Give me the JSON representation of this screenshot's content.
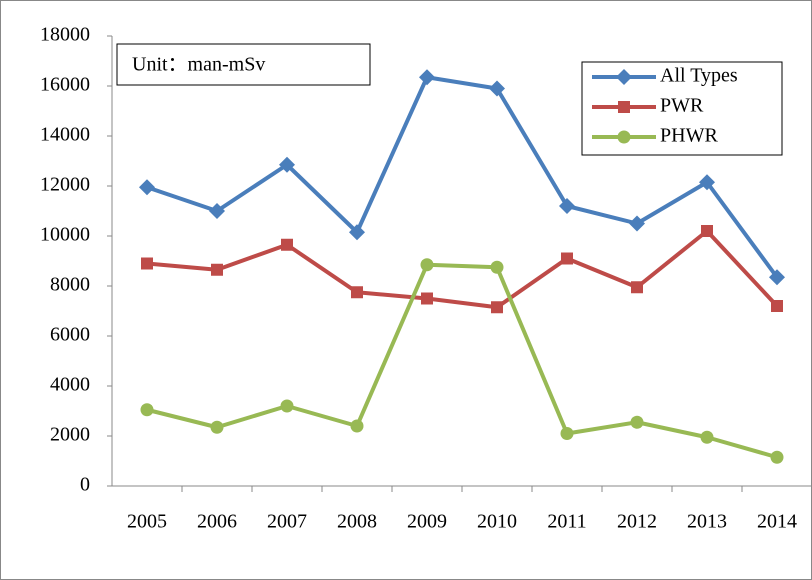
{
  "chart_data": {
    "type": "line",
    "annotation": "Unit：man-mSv",
    "categories": [
      "2005",
      "2006",
      "2007",
      "2008",
      "2009",
      "2010",
      "2011",
      "2012",
      "2013",
      "2014"
    ],
    "series": [
      {
        "name": "All Types",
        "color": "#4a7ebb",
        "marker": "diamond",
        "values": [
          11950,
          11000,
          12850,
          10150,
          16350,
          15900,
          11200,
          10500,
          12150,
          8350
        ]
      },
      {
        "name": "PWR",
        "color": "#be4b48",
        "marker": "square",
        "values": [
          8900,
          8650,
          9650,
          7750,
          7500,
          7150,
          9100,
          7950,
          10200,
          7200
        ]
      },
      {
        "name": "PHWR",
        "color": "#98b954",
        "marker": "circle",
        "values": [
          3050,
          2350,
          3200,
          2400,
          8850,
          8750,
          2100,
          2550,
          1950,
          1150
        ]
      }
    ],
    "ylim": [
      0,
      18000
    ],
    "yticks": [
      0,
      2000,
      4000,
      6000,
      8000,
      10000,
      12000,
      14000,
      16000,
      18000
    ],
    "grid": false,
    "legend": "upper right"
  }
}
